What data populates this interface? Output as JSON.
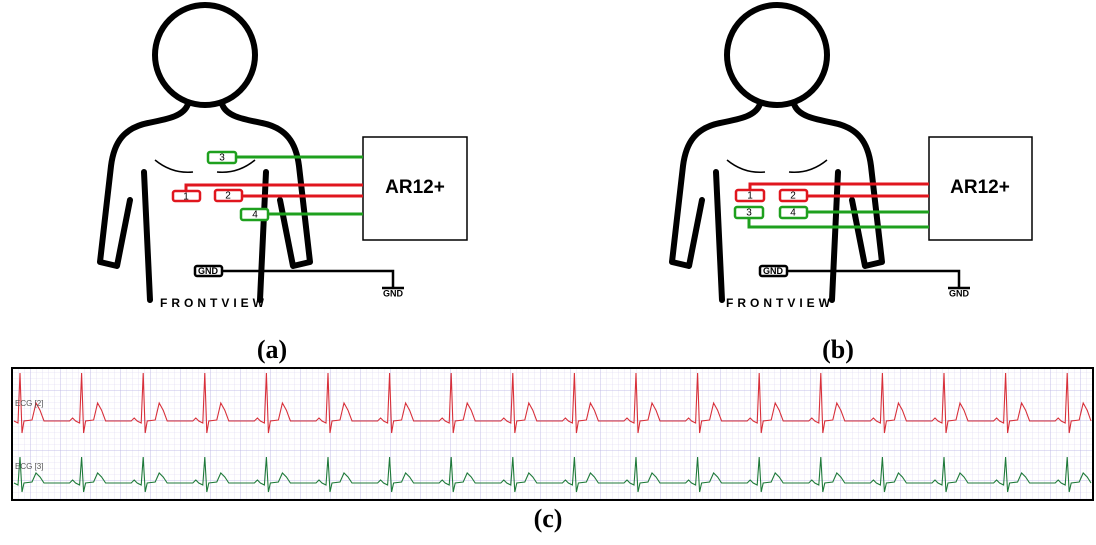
{
  "panels": [
    {
      "caption": "(a)",
      "device": "AR12+",
      "ground": "GND",
      "ground_electrode": "GND",
      "view": "FRONTVIEW",
      "electrodes": [
        "3",
        "1",
        "2",
        "4"
      ]
    },
    {
      "caption": "(b)",
      "device": "AR12+",
      "ground": "GND",
      "ground_electrode": "GND",
      "view": "FRONTVIEW",
      "electrodes": [
        "1",
        "2",
        "3",
        "4"
      ]
    }
  ],
  "recording": {
    "caption": "(c)",
    "channels": [
      "ECG [2]",
      "ECG [3]"
    ]
  }
}
